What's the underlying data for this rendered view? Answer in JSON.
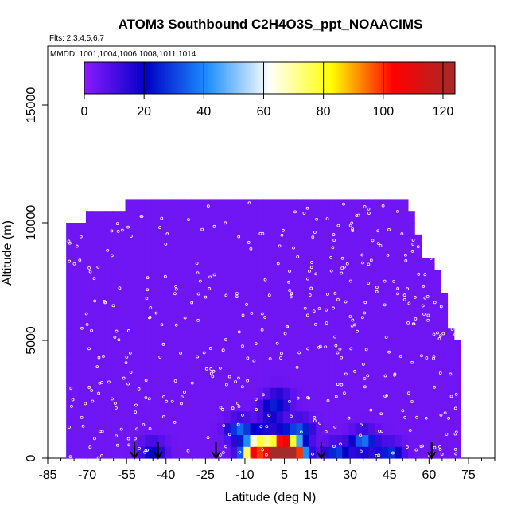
{
  "chart_data": {
    "type": "heatmap",
    "title": "ATOM3 Southbound C2H4O3S_ppt_NOAACIMS",
    "flights_label": "Flts: 2,3,4,5,6,7",
    "dates_label": "MMDD: 1001,1004,1006,1008,1011,1014",
    "xlabel": "Latitude (deg N)",
    "ylabel": "Altitude (m)",
    "xlim": [
      -85,
      85
    ],
    "ylim": [
      0,
      17500
    ],
    "x_ticks": [
      -85,
      -70,
      -55,
      -40,
      -25,
      -10,
      5,
      15,
      30,
      45,
      60,
      75
    ],
    "y_ticks": [
      0,
      5000,
      10000,
      15000
    ],
    "colorbar": {
      "min": 0,
      "max": 124,
      "ticks": [
        0,
        20,
        40,
        60,
        80,
        100,
        120
      ],
      "colors": [
        "#8b1aff",
        "#0000c8",
        "#1e90ff",
        "#ffffff",
        "#ffff00",
        "#ff0000",
        "#a52a2a"
      ]
    },
    "arrow_latitudes": [
      -52,
      -43,
      -21,
      19,
      61
    ],
    "background_value": 4,
    "hotspots": [
      {
        "lat": 5,
        "alt": 200,
        "value": 120
      },
      {
        "lat": 2,
        "alt": 200,
        "value": 110
      },
      {
        "lat": -7,
        "alt": 200,
        "value": 88
      },
      {
        "lat": 9,
        "alt": 200,
        "value": 82
      },
      {
        "lat": -4,
        "alt": 700,
        "value": 60
      },
      {
        "lat": 5,
        "alt": 700,
        "value": 58
      },
      {
        "lat": -12,
        "alt": 1200,
        "value": 35
      },
      {
        "lat": 11,
        "alt": 1200,
        "value": 30
      },
      {
        "lat": 25,
        "alt": 200,
        "value": 30
      },
      {
        "lat": 35,
        "alt": 700,
        "value": 38
      },
      {
        "lat": 45,
        "alt": 200,
        "value": 28
      },
      {
        "lat": -45,
        "alt": 300,
        "value": 22
      },
      {
        "lat": 0,
        "alt": 2000,
        "value": 22
      },
      {
        "lat": 3,
        "alt": 2500,
        "value": 18
      }
    ]
  }
}
